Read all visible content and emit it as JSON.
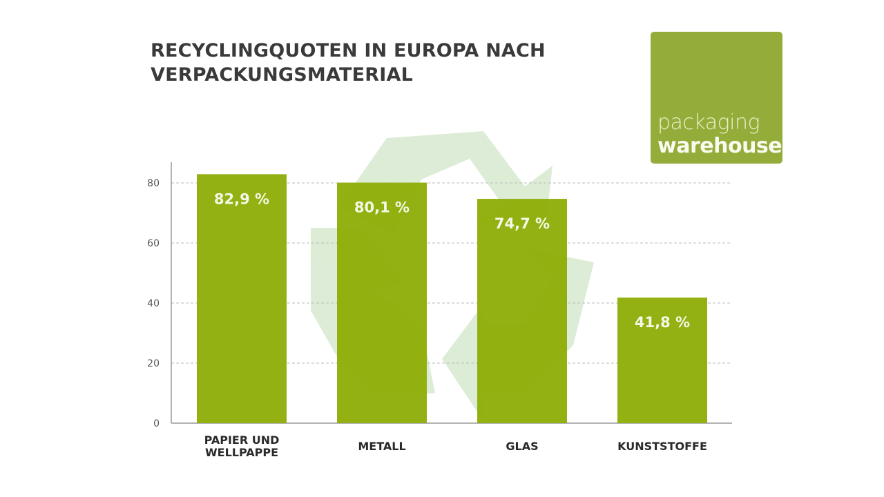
{
  "chart_data": {
    "type": "bar",
    "title": "RECYCLINGQUOTEN IN EUROPA NACH VERPACKUNGSMATERIAL",
    "categories": [
      "PAPIER UND WELLPAPPE",
      "METALL",
      "GLAS",
      "KUNSTSTOFFE"
    ],
    "category_lines": [
      [
        "PAPIER UND",
        "WELLPAPPE"
      ],
      [
        "METALL"
      ],
      [
        "GLAS"
      ],
      [
        "KUNSTSTOFFE"
      ]
    ],
    "values": [
      82.9,
      80.1,
      74.7,
      41.8
    ],
    "data_labels": [
      "82,9 %",
      "80,1 %",
      "74,7 %",
      "41,8 %"
    ],
    "yticks": [
      "0",
      "20",
      "40",
      "60",
      "80"
    ],
    "ylim": [
      0,
      80
    ],
    "grid": true,
    "bar_color": "#8fae0a",
    "watermark": "recycle-symbol"
  },
  "logo": {
    "line1": "packaging",
    "line2": "warehouse",
    "color": "#94ad3a"
  }
}
